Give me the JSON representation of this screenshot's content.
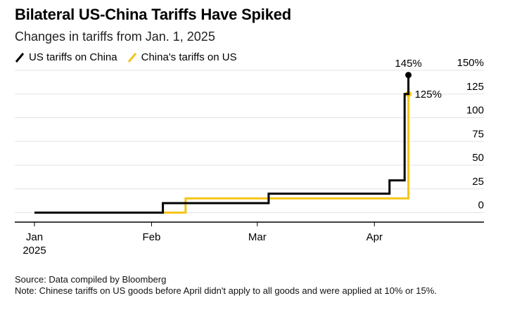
{
  "title": "Bilateral US-China Tariffs Have Spiked",
  "subtitle": "Changes in tariffs from Jan. 1, 2025",
  "colors": {
    "us": "#000000",
    "china": "#f5c518",
    "grid": "#e3e3e3",
    "axis": "#000000"
  },
  "notes": {
    "source": "Source: Data compiled by Bloomberg",
    "note": "Note: Chinese tariffs on US goods before April didn't apply to all goods and were applied at 10% or 15%."
  },
  "chart_data": {
    "type": "line",
    "title": "Bilateral US-China Tariffs Have Spiked",
    "subtitle": "Changes in tariffs from Jan. 1, 2025",
    "xlabel": "",
    "ylabel": "",
    "xlim": [
      "2025-01-01",
      "2025-04-30"
    ],
    "ylim": [
      -10,
      150
    ],
    "y_ticks": [
      {
        "value": 150,
        "label": "150%"
      },
      {
        "value": 125,
        "label": "125"
      },
      {
        "value": 100,
        "label": "100"
      },
      {
        "value": 75,
        "label": "75"
      },
      {
        "value": 50,
        "label": "50"
      },
      {
        "value": 25,
        "label": "25"
      },
      {
        "value": 0,
        "label": "0"
      }
    ],
    "x_ticks": [
      {
        "value": "2025-01-01",
        "label": "Jan",
        "sublabel": "2025"
      },
      {
        "value": "2025-02-01",
        "label": "Feb",
        "sublabel": ""
      },
      {
        "value": "2025-03-01",
        "label": "Mar",
        "sublabel": ""
      },
      {
        "value": "2025-04-01",
        "label": "Apr",
        "sublabel": ""
      }
    ],
    "grid": true,
    "legend_position": "top-left",
    "series": [
      {
        "name": "US tariffs on China",
        "color": "#000000",
        "step": true,
        "end_label": "145%",
        "points": [
          [
            "2025-01-01",
            0
          ],
          [
            "2025-02-04",
            10
          ],
          [
            "2025-03-04",
            20
          ],
          [
            "2025-04-05",
            34
          ],
          [
            "2025-04-09",
            125
          ],
          [
            "2025-04-10",
            145
          ]
        ]
      },
      {
        "name": "China's tariffs on US",
        "color": "#f5c518",
        "step": true,
        "end_label": "125%",
        "points": [
          [
            "2025-01-01",
            0
          ],
          [
            "2025-02-10",
            15
          ],
          [
            "2025-04-09",
            15
          ],
          [
            "2025-04-10",
            125
          ]
        ]
      }
    ]
  }
}
